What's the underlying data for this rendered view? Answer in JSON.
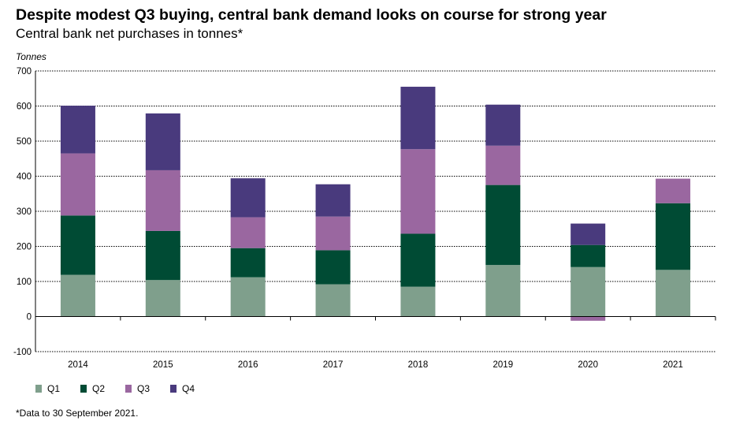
{
  "header": {
    "title": "Despite modest Q3 buying, central bank demand looks on course for strong year",
    "subtitle": "Central bank net purchases in tonnes*"
  },
  "footnote": "*Data to 30 September 2021.",
  "colors": {
    "Q1": "#7f9f8c",
    "Q2": "#004b34",
    "Q3": "#9a67a0",
    "Q4": "#493a7d"
  },
  "chart_data": {
    "type": "bar",
    "stacked": true,
    "ylabel": "Tonnes",
    "xlabel": "",
    "ylim": [
      -100,
      700
    ],
    "yticks": [
      -100,
      0,
      100,
      200,
      300,
      400,
      500,
      600,
      700
    ],
    "grid": true,
    "legend_position": "bottom-left",
    "categories": [
      "2014",
      "2015",
      "2016",
      "2017",
      "2018",
      "2019",
      "2020",
      "2021"
    ],
    "series": [
      {
        "name": "Q1",
        "values": [
          119,
          104,
          112,
          92,
          85,
          147,
          141,
          133
        ]
      },
      {
        "name": "Q2",
        "values": [
          169,
          140,
          83,
          97,
          151,
          228,
          63,
          190
        ]
      },
      {
        "name": "Q3",
        "values": [
          177,
          173,
          88,
          96,
          241,
          112,
          -12,
          70
        ]
      },
      {
        "name": "Q4",
        "values": [
          136,
          162,
          111,
          92,
          178,
          117,
          61,
          0
        ]
      }
    ]
  }
}
